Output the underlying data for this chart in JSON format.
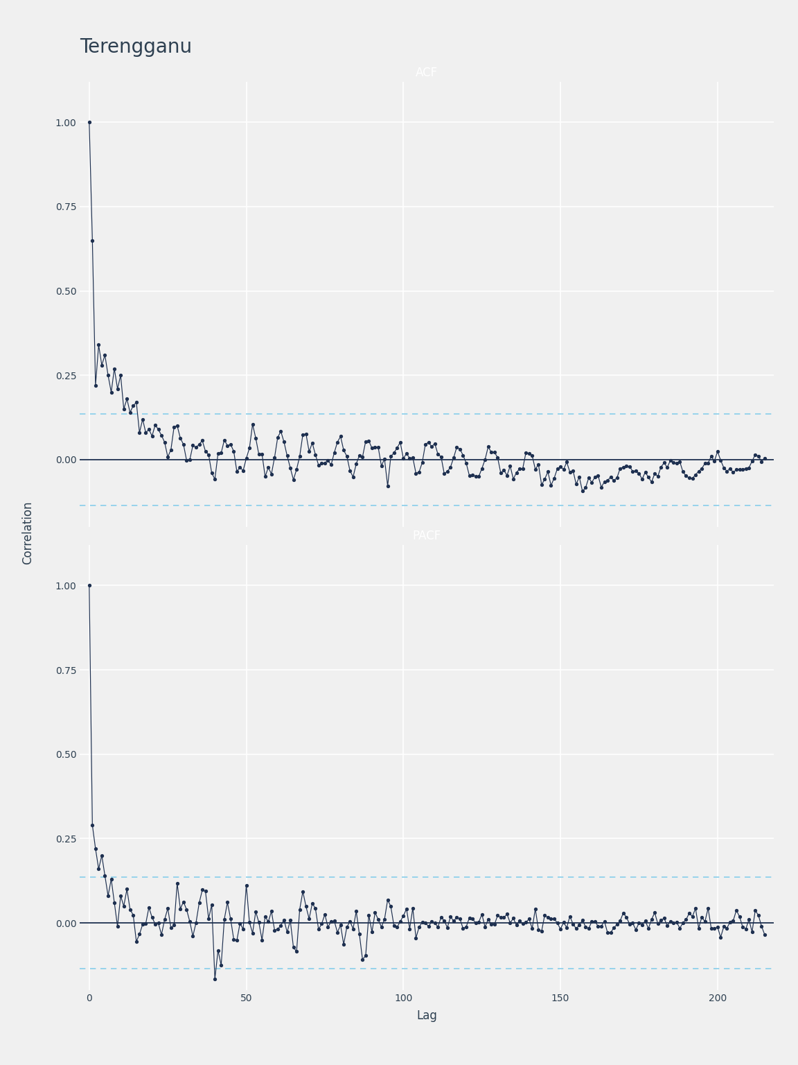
{
  "title": "Terengganu",
  "title_color": "#2d3f50",
  "title_fontsize": 20,
  "panel_header_color": "#2d4155",
  "panel_header_text_color": "#ffffff",
  "panel_labels": [
    "ACF",
    "PACF"
  ],
  "line_color": "#1e3050",
  "ci_color": "#87ceeb",
  "acf_ci": 0.135,
  "pacf_ci": 0.135,
  "zero_line_color": "#1e3050",
  "bg_color": "#f0f0f0",
  "grid_color": "#ffffff",
  "ylabel": "Correlation",
  "xlabel": "Lag",
  "acf_ylim": [
    -0.2,
    1.12
  ],
  "pacf_ylim": [
    -0.2,
    1.12
  ],
  "yticks": [
    0.0,
    0.25,
    0.5,
    0.75,
    1.0
  ],
  "xticks": [
    0,
    50,
    100,
    150,
    200
  ],
  "n_lags": 215
}
